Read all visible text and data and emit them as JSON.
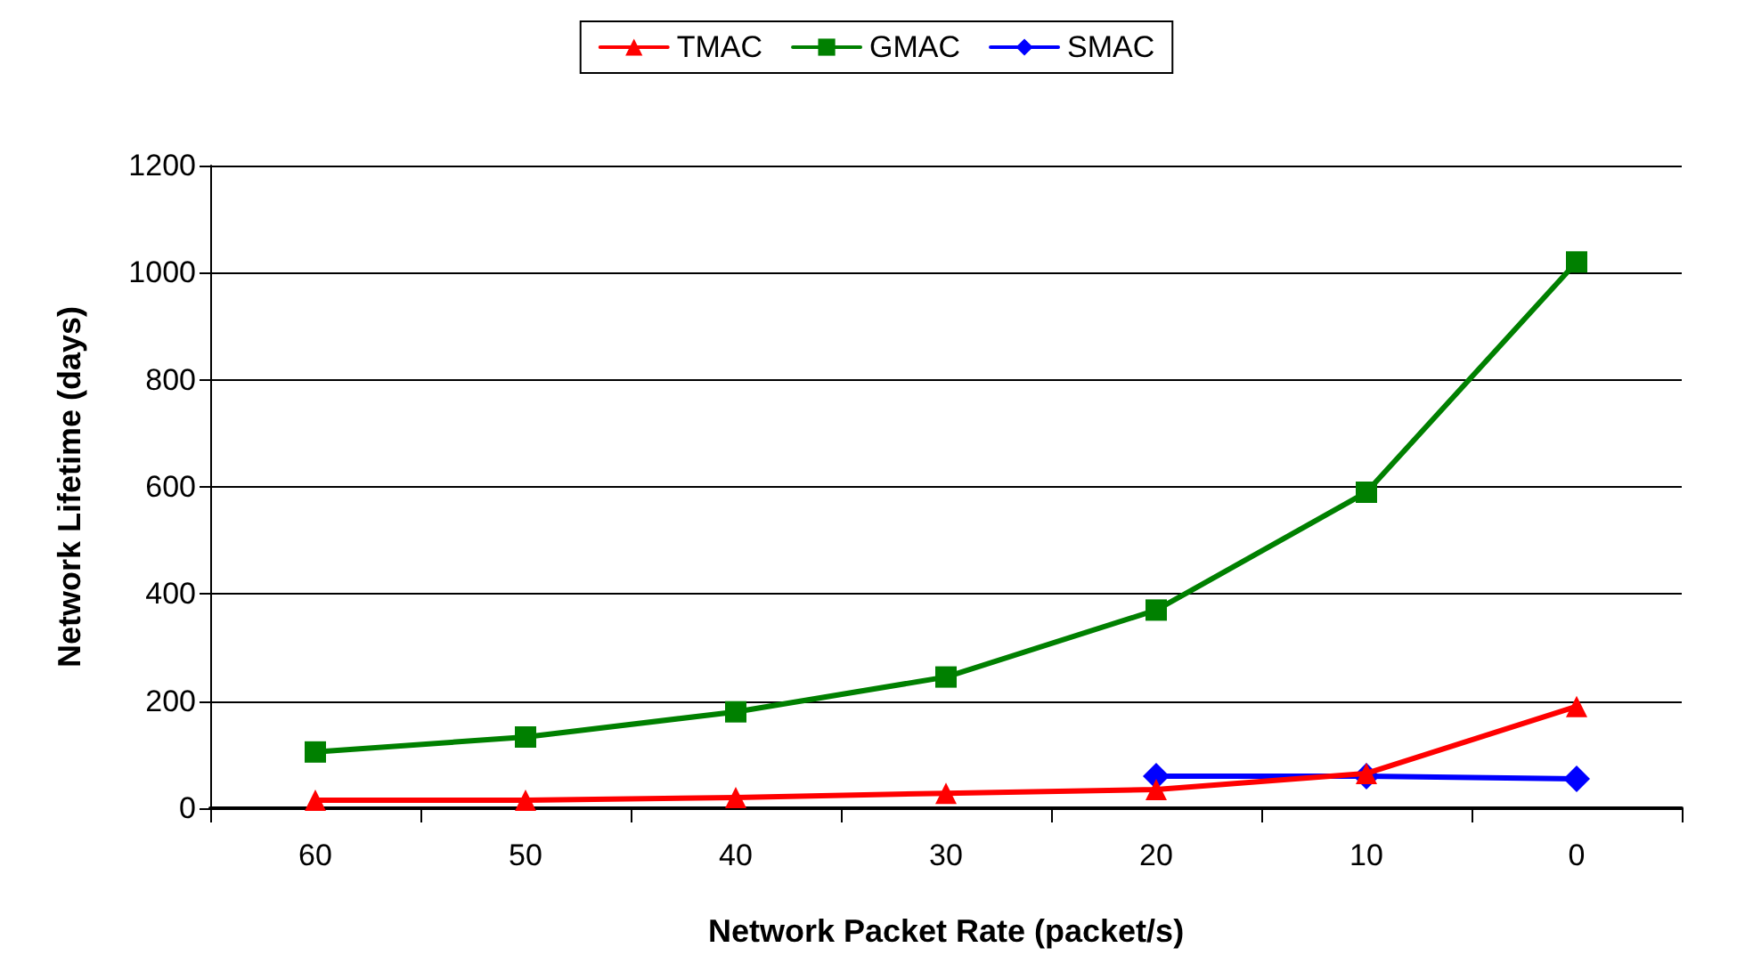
{
  "chart_data": {
    "type": "line",
    "xlabel": "Network Packet Rate (packet/s)",
    "ylabel": "Network Lifetime (days)",
    "categories": [
      "60",
      "50",
      "40",
      "30",
      "20",
      "10",
      "0"
    ],
    "series": [
      {
        "name": "TMAC",
        "color": "#ff0000",
        "marker": "triangle",
        "values": [
          15,
          15,
          20,
          28,
          35,
          65,
          190
        ]
      },
      {
        "name": "GMAC",
        "color": "#008000",
        "marker": "square",
        "values": [
          105,
          133,
          180,
          245,
          370,
          590,
          1020
        ]
      },
      {
        "name": "SMAC",
        "color": "#0000ff",
        "marker": "diamond",
        "values": [
          null,
          null,
          null,
          null,
          60,
          60,
          55
        ]
      }
    ],
    "ylim": [
      0,
      1200
    ],
    "yticks": [
      0,
      200,
      400,
      600,
      800,
      1000,
      1200
    ],
    "grid": "y",
    "legend": "top",
    "line_style": "solid"
  }
}
